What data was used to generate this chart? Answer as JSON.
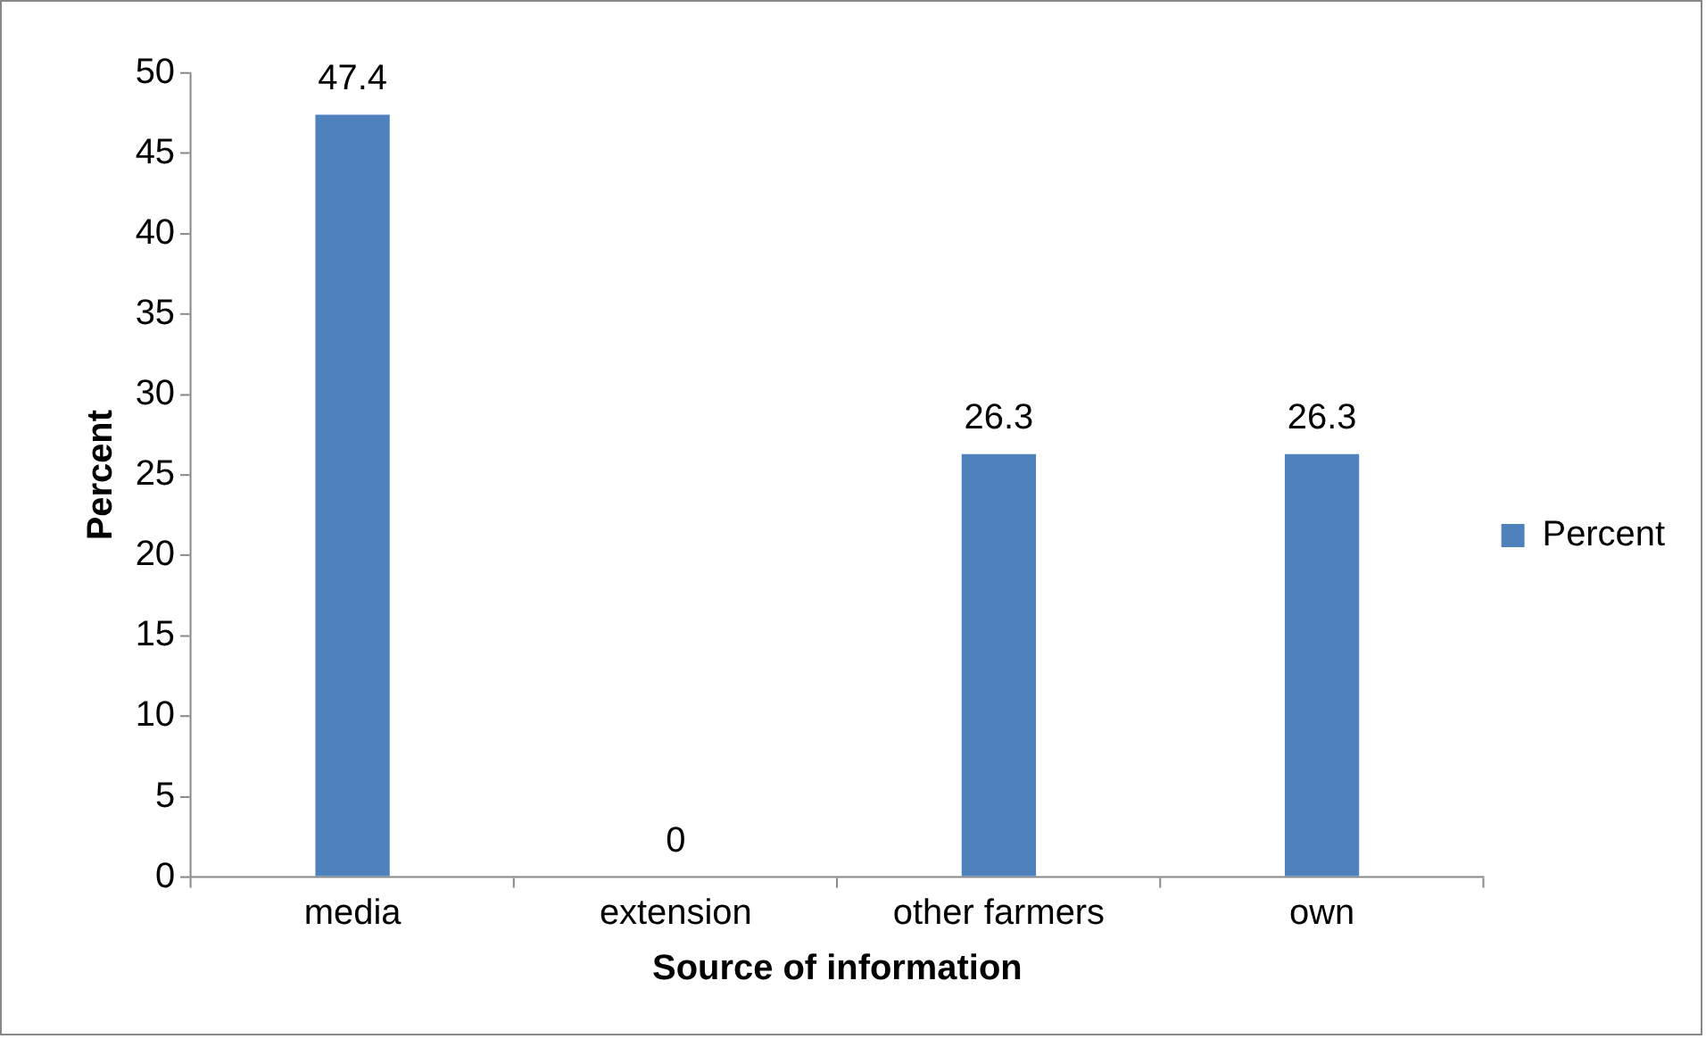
{
  "chart_data": {
    "type": "bar",
    "xlabel": "Source of information",
    "ylabel": "Percent",
    "categories": [
      "media",
      "extension",
      "other farmers",
      "own"
    ],
    "series": [
      {
        "name": "Percent",
        "color": "#4f81bd",
        "values": [
          47.4,
          0,
          26.3,
          26.3
        ]
      }
    ],
    "ylim": [
      0,
      50
    ],
    "yticks": [
      0,
      5,
      10,
      15,
      20,
      25,
      30,
      35,
      40,
      45,
      50
    ],
    "grid": false,
    "legend": "right",
    "data_labels": true
  }
}
